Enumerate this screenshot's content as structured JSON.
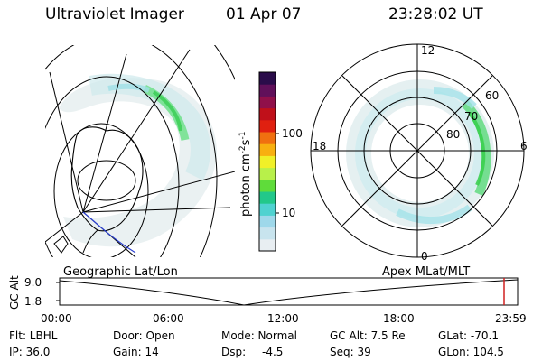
{
  "header": {
    "title": "Ultraviolet Imager",
    "date": "01 Apr 07",
    "time": "23:28:02 UT"
  },
  "left_panel": {
    "label": "Geographic Lat/Lon"
  },
  "right_panel": {
    "label": "Apex MLat/MLT",
    "mlt_labels": {
      "top": "12",
      "bottom": "0",
      "left": "18",
      "right": "6"
    },
    "lat_labels": [
      "60",
      "70",
      "80"
    ]
  },
  "colorbar": {
    "label": "photon cm",
    "exp1": "-2",
    "mid": "s",
    "exp2": "-1",
    "ticks": [
      "100",
      "10"
    ],
    "scale": "log",
    "colors": [
      "#e8eef2",
      "#c8e4ee",
      "#9ed8ea",
      "#4fd2d0",
      "#22c88a",
      "#5fdc3a",
      "#b8f04a",
      "#f0f028",
      "#f8b010",
      "#f07010",
      "#e02010",
      "#c0101a",
      "#90104a",
      "#60105a",
      "#2a0c4a"
    ]
  },
  "timeline": {
    "axis_label": "GC Alt",
    "y_ticks": [
      "9.0",
      "1.8"
    ],
    "x_ticks": [
      "00:00",
      "06:00",
      "12:00",
      "18:00",
      "23:59"
    ],
    "marker_color": "#d02020"
  },
  "info": {
    "row1": [
      "Flt: LBHL",
      "Door: Open",
      "Mode: Normal",
      "GC Alt: 7.5 Re",
      "GLat: -70.1"
    ],
    "row2": [
      "IP: 36.0",
      "Gain: 14",
      "Dsp:",
      "-4.5",
      "Seq: 39",
      "GLon: 104.5"
    ]
  }
}
